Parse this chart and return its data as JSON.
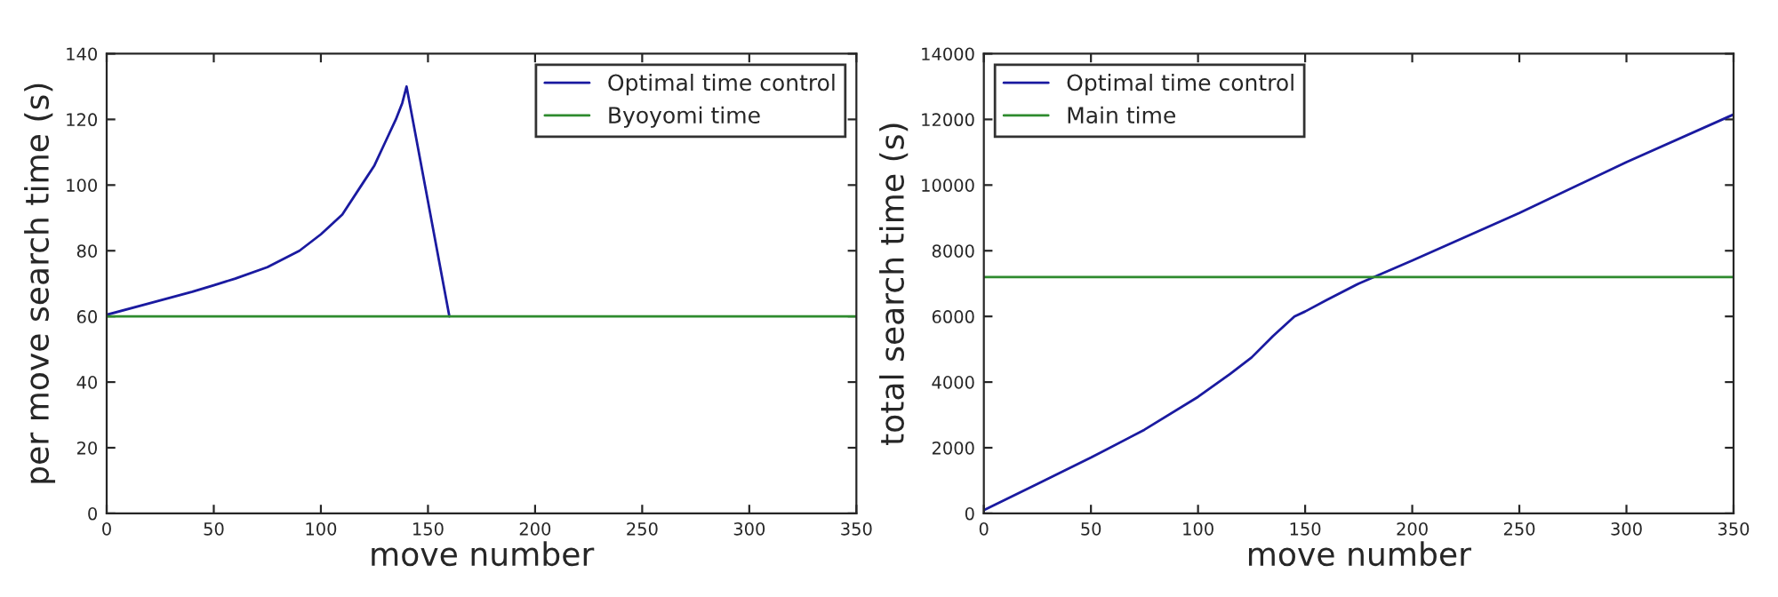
{
  "chart_data": [
    {
      "type": "line",
      "xlabel": "move number",
      "ylabel": "per move search time (s)",
      "xlim": [
        0,
        350
      ],
      "ylim": [
        0,
        140
      ],
      "xticks": [
        0,
        50,
        100,
        150,
        200,
        250,
        300,
        350
      ],
      "yticks": [
        0,
        20,
        40,
        60,
        80,
        100,
        120,
        140
      ],
      "grid": false,
      "legend": "top right",
      "series": [
        {
          "name": "Optimal time control",
          "color": "#1a1aa0",
          "x": [
            0,
            20,
            40,
            50,
            60,
            75,
            90,
            100,
            110,
            120,
            125,
            130,
            135,
            138,
            140,
            150,
            160
          ],
          "values": [
            60.5,
            64,
            67.5,
            69.5,
            71.5,
            75,
            80,
            85,
            91,
            101,
            106,
            113,
            120,
            125,
            130,
            95,
            60
          ]
        },
        {
          "name": "Byoyomi time",
          "color": "#2e8b2e",
          "x": [
            0,
            350
          ],
          "values": [
            60,
            60
          ]
        }
      ]
    },
    {
      "type": "line",
      "xlabel": "move number",
      "ylabel": "total search time (s)",
      "xlim": [
        0,
        350
      ],
      "ylim": [
        0,
        14000
      ],
      "xticks": [
        0,
        50,
        100,
        150,
        200,
        250,
        300,
        350
      ],
      "yticks": [
        0,
        2000,
        4000,
        6000,
        8000,
        10000,
        12000,
        14000
      ],
      "grid": false,
      "legend": "top left",
      "series": [
        {
          "name": "Optimal time control",
          "color": "#1a1aa0",
          "x": [
            0,
            25,
            50,
            75,
            100,
            115,
            125,
            135,
            145,
            150,
            160,
            175,
            200,
            250,
            300,
            350
          ],
          "values": [
            100,
            900,
            1700,
            2550,
            3550,
            4250,
            4750,
            5400,
            6000,
            6150,
            6500,
            7000,
            7700,
            9150,
            10700,
            12150
          ]
        },
        {
          "name": "Main time",
          "color": "#2e8b2e",
          "x": [
            0,
            350
          ],
          "values": [
            7200,
            7200
          ]
        }
      ]
    }
  ]
}
